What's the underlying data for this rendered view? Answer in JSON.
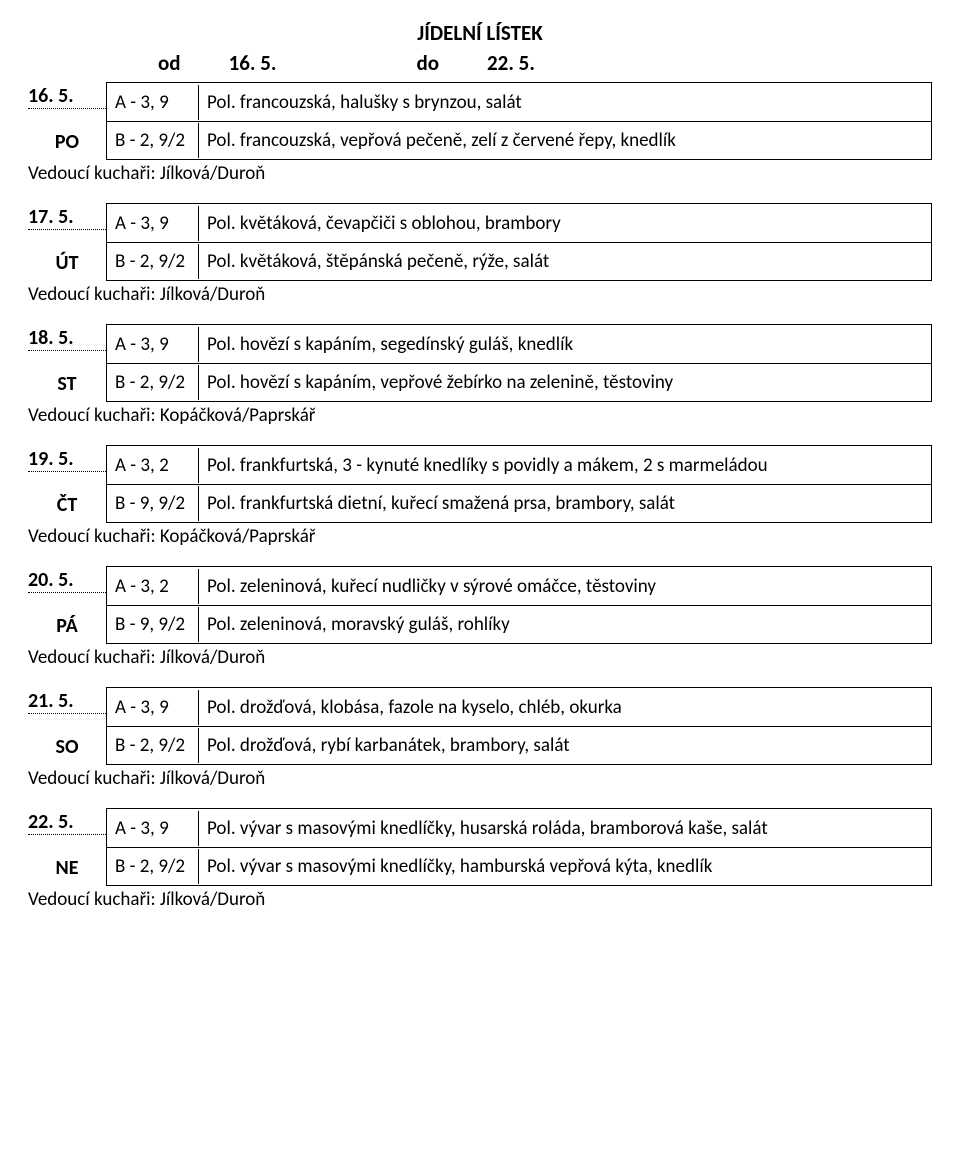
{
  "title": "JÍDELNÍ LÍSTEK",
  "range": {
    "od_label": "od",
    "od_val": "16. 5.",
    "do_label": "do",
    "do_val": "22. 5."
  },
  "days": [
    {
      "date": "16. 5.",
      "abbr": "PO",
      "a_code": "A - 3, 9",
      "a_text": "Pol. francouzská, halušky s brynzou, salát",
      "b_code": "B - 2, 9/2",
      "b_text": "Pol. francouzská, vepřová pečeně, zelí z červené řepy, knedlík",
      "chef": "Vedoucí kuchaři: Jílková/Duroň"
    },
    {
      "date": "17. 5.",
      "abbr": "ÚT",
      "a_code": "A - 3, 9",
      "a_text": "Pol. květáková, čevapčiči s oblohou, brambory",
      "b_code": "B - 2, 9/2",
      "b_text": "Pol. květáková, štěpánská pečeně, rýže, salát",
      "chef": "Vedoucí kuchaři: Jílková/Duroň"
    },
    {
      "date": "18. 5.",
      "abbr": "ST",
      "a_code": "A - 3, 9",
      "a_text": "Pol. hovězí s kapáním, segedínský guláš, knedlík",
      "b_code": "B - 2, 9/2",
      "b_text": "Pol. hovězí s kapáním, vepřové žebírko na zelenině, těstoviny",
      "chef": "Vedoucí kuchaři: Kopáčková/Paprskář"
    },
    {
      "date": "19. 5.",
      "abbr": "ČT",
      "a_code": "A - 3, 2",
      "a_text": "Pol. frankfurtská, 3 - kynuté knedlíky s povidly a mákem, 2 s marmeládou",
      "b_code": "B - 9, 9/2",
      "b_text": "Pol. frankfurtská dietní, kuřecí smažená prsa, brambory, salát",
      "chef": "Vedoucí kuchaři: Kopáčková/Paprskář"
    },
    {
      "date": "20. 5.",
      "abbr": "PÁ",
      "a_code": "A - 3, 2",
      "a_text": "Pol. zeleninová, kuřecí nudličky v sýrové omáčce, těstoviny",
      "b_code": "B - 9, 9/2",
      "b_text": "Pol. zeleninová, moravský guláš, rohlíky",
      "chef": "Vedoucí kuchaři: Jílková/Duroň"
    },
    {
      "date": "21. 5.",
      "abbr": "SO",
      "a_code": "A - 3, 9",
      "a_text": "Pol. drožďová, klobása, fazole na kyselo, chléb, okurka",
      "b_code": "B - 2, 9/2",
      "b_text": "Pol. drožďová, rybí karbanátek, brambory, salát",
      "chef": "Vedoucí kuchaři: Jílková/Duroň"
    },
    {
      "date": "22. 5.",
      "abbr": "NE",
      "a_code": "A - 3, 9",
      "a_text": "Pol. vývar s masovými knedlíčky, husarská roláda, bramborová kaše, salát",
      "b_code": "B - 2, 9/2",
      "b_text": "Pol. vývar s masovými knedlíčky, hamburská vepřová kýta, knedlík",
      "chef": "Vedoucí kuchaři: Jílková/Duroň"
    }
  ]
}
